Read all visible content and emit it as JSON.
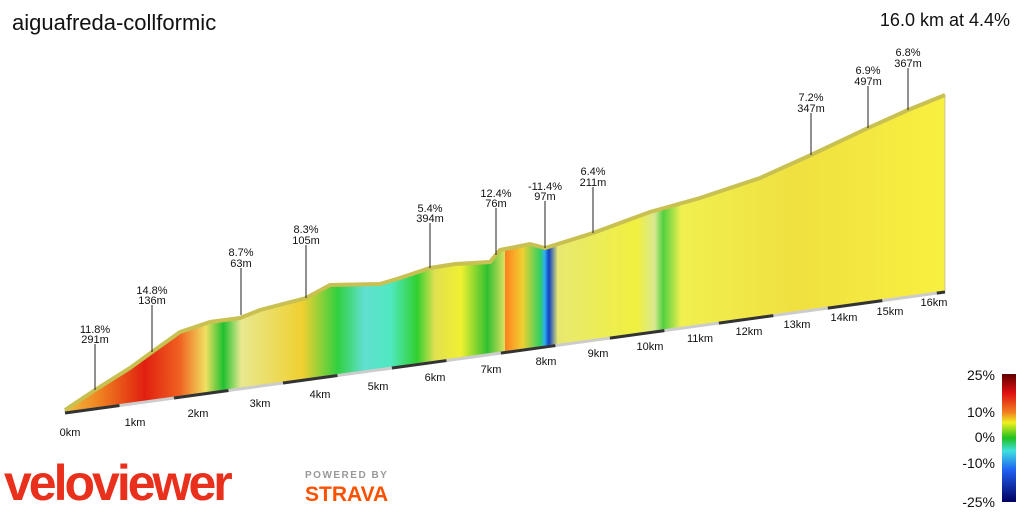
{
  "title": "aiguafreda-collformic",
  "summary": "16.0 km at 4.4%",
  "annotations": [
    {
      "grade": "11.8%",
      "length": "291m"
    },
    {
      "grade": "14.8%",
      "length": "136m"
    },
    {
      "grade": "8.7%",
      "length": "63m"
    },
    {
      "grade": "8.3%",
      "length": "105m"
    },
    {
      "grade": "5.4%",
      "length": "394m"
    },
    {
      "grade": "12.4%",
      "length": "76m"
    },
    {
      "grade": "-11.4%",
      "length": "97m"
    },
    {
      "grade": "6.4%",
      "length": "211m"
    },
    {
      "grade": "7.2%",
      "length": "347m"
    },
    {
      "grade": "6.9%",
      "length": "497m"
    },
    {
      "grade": "6.8%",
      "length": "367m"
    }
  ],
  "distance_labels": [
    "0km",
    "1km",
    "2km",
    "3km",
    "4km",
    "5km",
    "6km",
    "7km",
    "8km",
    "9km",
    "10km",
    "11km",
    "12km",
    "13km",
    "14km",
    "15km",
    "16km"
  ],
  "scale_labels": [
    "25%",
    "10%",
    "0%",
    "-10%",
    "-25%"
  ],
  "logo": {
    "brand": "veloviewer",
    "powered": "POWERED BY",
    "partner": "STRAVA"
  }
}
